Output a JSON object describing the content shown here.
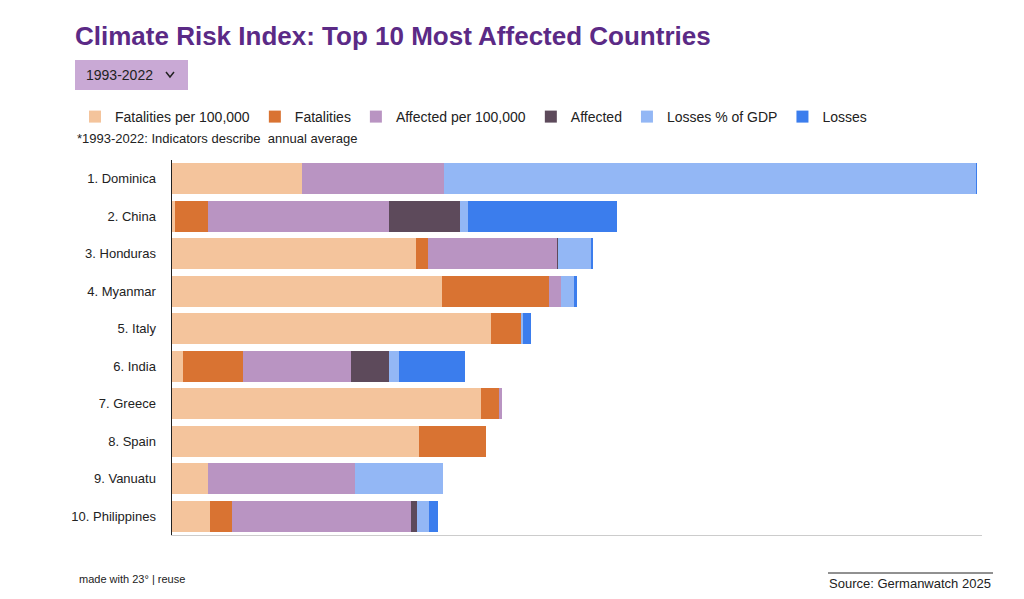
{
  "chart_data": {
    "type": "bar",
    "title": "Climate Risk Index: Top 10 Most Affected Countries",
    "subtitle": "1993-2022",
    "annotations": [
      "*1993-2022: Indicators describe  annual average",
      "made with 23° | reuse",
      "Source: Germanwatch 2025"
    ],
    "orientation": "horizontal",
    "stacked": true,
    "grid": false,
    "legend": "top-left",
    "data_labels": false,
    "tick_labels": "y",
    "xlim": [
      0,
      810
    ],
    "categories": [
      "1. Dominica",
      "2. China",
      "3. Honduras",
      "4. Myanmar",
      "5. Italy",
      "6. India",
      "7. Greece",
      "8. Spain",
      "9. Vanuatu",
      "10. Philippines"
    ],
    "series": [
      {
        "name": "Fatalities per 100,000",
        "color": "#f4c49c",
        "values": [
          130,
          3,
          244,
          270,
          319,
          11,
          309,
          247,
          36,
          38
        ]
      },
      {
        "name": "Fatalities",
        "color": "#d97332",
        "values": [
          0,
          33,
          12,
          107,
          30,
          60,
          18,
          67,
          0,
          22
        ]
      },
      {
        "name": "Affected per 100,000",
        "color": "#b994c2",
        "values": [
          142,
          181,
          129,
          12,
          0,
          108,
          3,
          0,
          147,
          179
        ]
      },
      {
        "name": "Affected",
        "color": "#5d4a5b",
        "values": [
          0,
          71,
          1,
          0,
          0,
          38,
          0,
          0,
          0,
          6
        ]
      },
      {
        "name": "Losses % of GDP",
        "color": "#93b7f5",
        "values": [
          532,
          8,
          33,
          13,
          2,
          10,
          0,
          0,
          88,
          12
        ]
      },
      {
        "name": "Losses",
        "color": "#3b7ded",
        "values": [
          1,
          149,
          2,
          3,
          8,
          66,
          0,
          0,
          0,
          9
        ]
      }
    ]
  }
}
